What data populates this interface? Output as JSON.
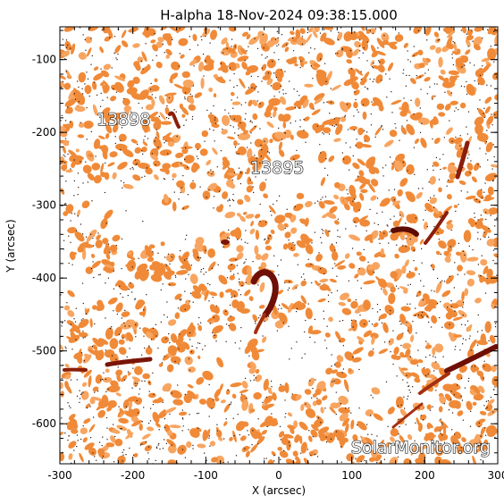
{
  "title": "H-alpha 18-Nov-2024 09:38:15.000",
  "x_axis": {
    "label": "X (arcsec)",
    "range": [
      -300,
      300
    ],
    "ticks": [
      -300,
      -200,
      -100,
      0,
      100,
      200,
      300
    ]
  },
  "y_axis": {
    "label": "Y (arcsec)",
    "range": [
      -655,
      -55
    ],
    "ticks": [
      -100,
      -200,
      -300,
      -400,
      -500,
      -600
    ]
  },
  "active_regions": [
    {
      "number": "13898",
      "x": -245,
      "y": -190
    },
    {
      "number": "13895",
      "x": -35,
      "y": -235
    }
  ],
  "watermark": "SolarMonitor.org",
  "colors": {
    "background": "#ffffff",
    "chromosphere": "#f08a38",
    "chromosphere_light": "#f7a560",
    "filament": "#7a1408",
    "speckle": "#2a1208"
  }
}
